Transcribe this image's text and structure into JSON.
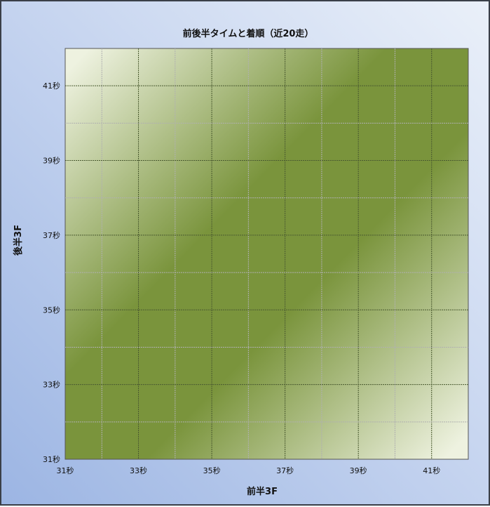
{
  "chart_data": {
    "type": "scatter",
    "title": "前後半タイムと着順（近20走）",
    "xlabel": "前半3F",
    "ylabel": "後半3F",
    "xlim": [
      31,
      42
    ],
    "ylim": [
      31,
      42
    ],
    "x_ticks": [
      31,
      33,
      35,
      37,
      39,
      41
    ],
    "y_ticks": [
      31,
      33,
      35,
      37,
      39,
      41
    ],
    "tick_suffix": "秒",
    "x_tick_labels": [
      "31秒",
      "33秒",
      "35秒",
      "37秒",
      "39秒",
      "41秒"
    ],
    "y_tick_labels": [
      "31秒",
      "33秒",
      "35秒",
      "37秒",
      "39秒",
      "41秒"
    ],
    "major_grid_step": 2,
    "minor_grid_step": 1,
    "grid": true,
    "points": [],
    "colors": {
      "band": "#7a943c",
      "corner": "#eef2e0",
      "background_low": "#9cb5e3",
      "background_high": "#eaf0f9"
    }
  }
}
